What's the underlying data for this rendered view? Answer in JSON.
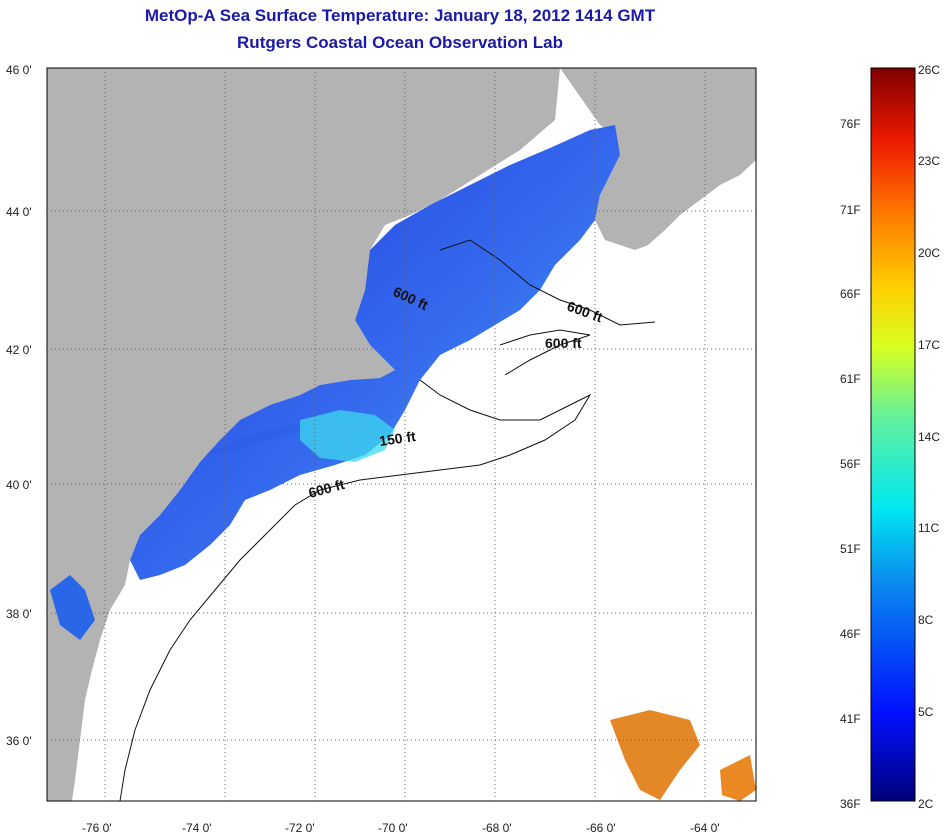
{
  "title": "MetOp-A Sea Surface Temperature:  January 18, 2012 1414 GMT",
  "subtitle": "Rutgers Coastal Ocean Observation Lab",
  "lat_labels": [
    "46 0'",
    "44 0'",
    "42 0'",
    "40 0'",
    "38 0'",
    "36 0'"
  ],
  "lon_labels": [
    "-76 0'",
    "-74 0'",
    "-72 0'",
    "-70 0'",
    "-68 0'",
    "-66 0'",
    "-64 0'"
  ],
  "contour_labels": [
    "600 ft",
    "600 ft",
    "600 ft",
    "150 ft",
    "600 ft"
  ],
  "colorbar": {
    "celsius": [
      "26C",
      "23C",
      "20C",
      "17C",
      "14C",
      "11C",
      "8C",
      "5C",
      "2C"
    ],
    "fahrenheit": [
      "76F",
      "71F",
      "66F",
      "61F",
      "56F",
      "51F",
      "46F",
      "41F",
      "36F"
    ]
  },
  "colors": {
    "land": "#b3b3b3",
    "title": "#1a1aa6",
    "water_cold": "#1a3fe6",
    "water_warm": "#e07a10"
  }
}
